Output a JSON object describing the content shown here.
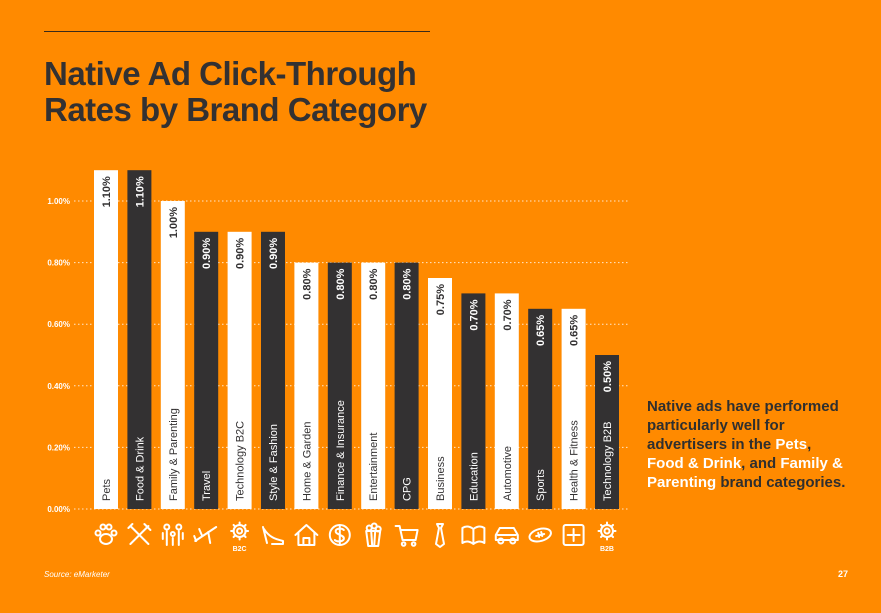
{
  "title": "Native Ad Click-Through Rates by Brand Category",
  "chart_data": {
    "type": "bar",
    "title": "Native Ad Click-Through Rates by Brand Category",
    "xlabel": "",
    "ylabel": "",
    "ylim": [
      0,
      1.0
    ],
    "yticks": [
      "0.00%",
      "0.20%",
      "0.40%",
      "0.60%",
      "0.80%",
      "1.00%"
    ],
    "categories": [
      "Pets",
      "Food & Drink",
      "Family & Parenting",
      "Travel",
      "Technology B2C",
      "Style & Fashion",
      "Home & Garden",
      "Finance & Insurance",
      "Entertainment",
      "CPG",
      "Business",
      "Education",
      "Automotive",
      "Sports",
      "Health & Fitness",
      "Technology B2B"
    ],
    "values": [
      1.1,
      1.1,
      1.0,
      0.9,
      0.9,
      0.9,
      0.8,
      0.8,
      0.8,
      0.8,
      0.75,
      0.7,
      0.7,
      0.65,
      0.65,
      0.5
    ],
    "value_labels": [
      "1.10%",
      "1.10%",
      "1.00%",
      "0.90%",
      "0.90%",
      "0.90%",
      "0.80%",
      "0.80%",
      "0.80%",
      "0.80%",
      "0.75%",
      "0.70%",
      "0.70%",
      "0.65%",
      "0.65%",
      "0.50%"
    ],
    "bar_colors": [
      "#FFFFFF",
      "#333132",
      "#FFFFFF",
      "#333132",
      "#FFFFFF",
      "#333132",
      "#FFFFFF",
      "#333132",
      "#FFFFFF",
      "#333132",
      "#FFFFFF",
      "#333132",
      "#FFFFFF",
      "#333132",
      "#FFFFFF",
      "#333132"
    ],
    "grid": true,
    "icons": [
      "paw-icon",
      "fork-knife-icon",
      "family-icon",
      "airplane-icon",
      "gear-b2c-icon",
      "high-heel-icon",
      "house-icon",
      "dollar-coin-icon",
      "popcorn-icon",
      "shopping-cart-icon",
      "necktie-icon",
      "book-icon",
      "car-icon",
      "football-icon",
      "medical-cross-icon",
      "gear-b2b-icon"
    ],
    "icon_captions": [
      "",
      "",
      "",
      "",
      "B2C",
      "",
      "",
      "",
      "",
      "",
      "",
      "",
      "",
      "",
      "",
      "B2B"
    ]
  },
  "side_text": {
    "line1": "Native ads have performed particularly well for advertisers in the ",
    "pets": "Pets",
    "sep1": ", ",
    "food": "Food & Drink",
    "sep2": ", and ",
    "family": "Family & Parenting",
    "line_end": " brand categories."
  },
  "source": "Source: eMarketer",
  "page_number": "27",
  "colors": {
    "background": "#FF8A00",
    "dark": "#333132",
    "light": "#FFFFFF"
  }
}
